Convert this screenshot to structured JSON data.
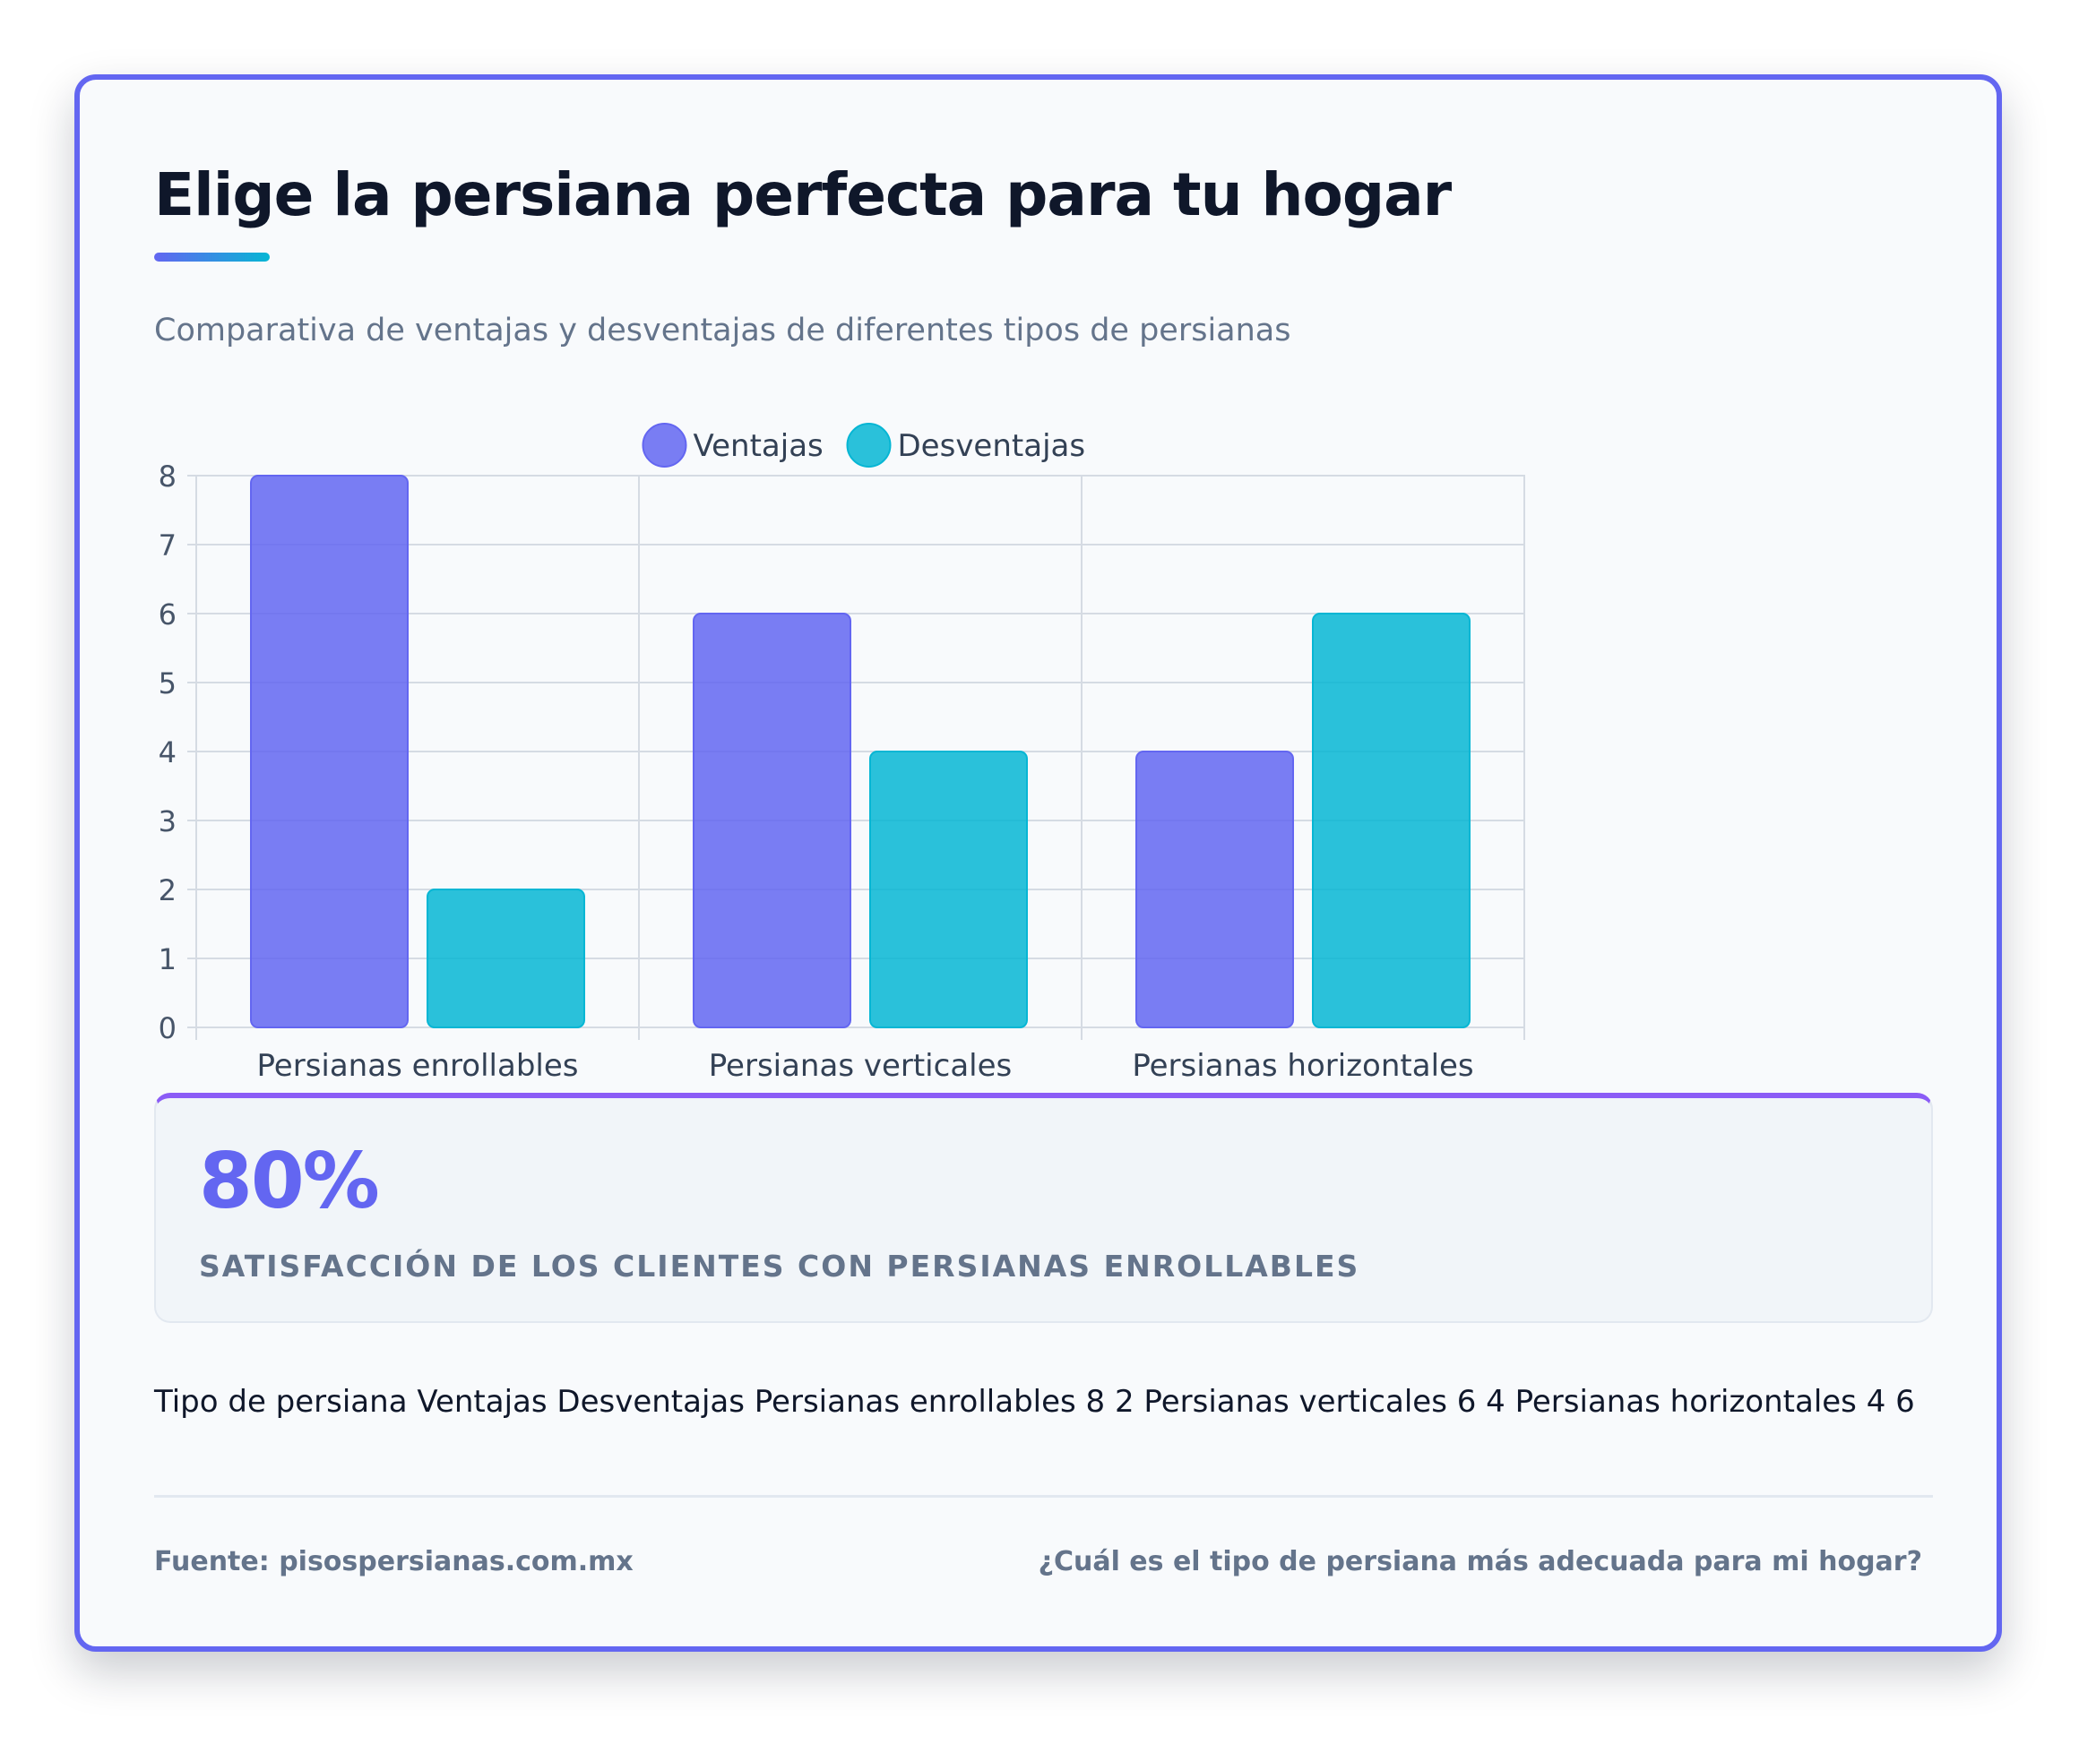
{
  "header": {
    "title": "Elige la persiana perfecta para tu hogar",
    "subtitle": "Comparativa de ventajas y desventajas de diferentes tipos de persianas"
  },
  "chart_data": {
    "type": "bar",
    "categories": [
      "Persianas enrollables",
      "Persianas verticales",
      "Persianas horizontales"
    ],
    "series": [
      {
        "name": "Ventajas",
        "values": [
          8,
          6,
          4
        ],
        "color": "#6366f1"
      },
      {
        "name": "Desventajas",
        "values": [
          2,
          4,
          6
        ],
        "color": "#06b6d4"
      }
    ],
    "ylim": [
      0,
      8
    ],
    "yticks": [
      "0",
      "1",
      "2",
      "3",
      "4",
      "5",
      "6",
      "7",
      "8"
    ],
    "grid": true,
    "legend": "top-center"
  },
  "stat": {
    "value": "80%",
    "label": "SATISFACCIÓN DE LOS CLIENTES CON PERSIANAS ENROLLABLES"
  },
  "table_text": "Tipo de persiana Ventajas Desventajas Persianas enrollables 8 2 Persianas verticales 6 4 Persianas horizontales 4 6",
  "footer": {
    "source": "Fuente: pisospersianas.com.mx",
    "question": "¿Cuál es el tipo de persiana más adecuada para mi hogar?"
  }
}
